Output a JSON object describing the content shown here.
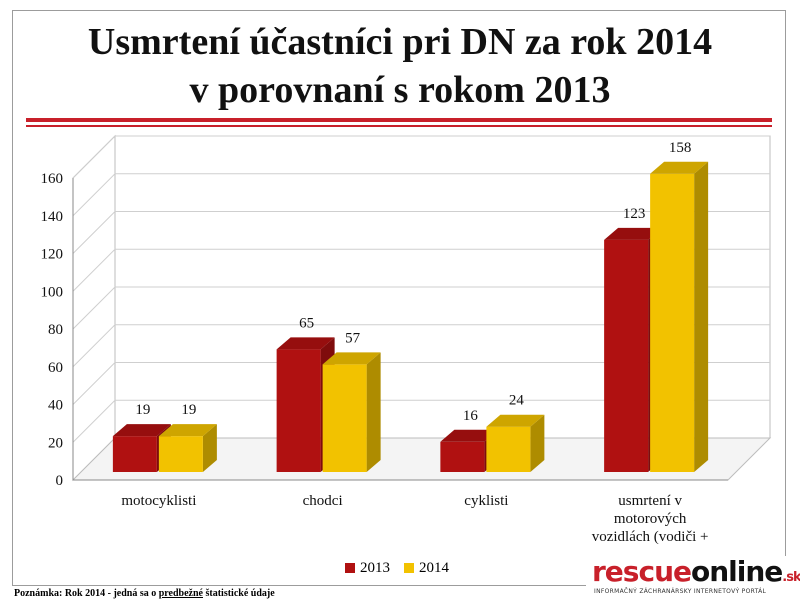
{
  "title_line1": "Usmrtení účastníci pri DN za rok 2014",
  "title_line2": "v porovnaní s rokom 2013",
  "colors": {
    "s2013": "#b01111",
    "s2014": "#f2c200",
    "accent": "#c8202a"
  },
  "chart_data": {
    "type": "bar",
    "title": "Usmrtení účastníci pri DN za rok 2014 v porovnaní s rokom 2013",
    "categories": [
      "motocyklisti",
      "chodci",
      "cyklisti",
      "usmrtení v motorových vozidlách (vodiči + spolujazdci)"
    ],
    "category_lines": [
      [
        "motocyklisti"
      ],
      [
        "chodci"
      ],
      [
        "cyklisti"
      ],
      [
        "usmrtení v",
        "motorových",
        "vozidlách (vodiči +"
      ]
    ],
    "series": [
      {
        "name": "2013",
        "values": [
          19,
          65,
          16,
          123
        ]
      },
      {
        "name": "2014",
        "values": [
          19,
          57,
          24,
          158
        ]
      }
    ],
    "ylim": [
      0,
      160
    ],
    "yticks": [
      "0",
      "20",
      "40",
      "60",
      "80",
      "100",
      "120",
      "140",
      "160"
    ],
    "grid": true,
    "style": "3d",
    "legend_position": "bottom"
  },
  "legend": {
    "label_2013": "2013",
    "label_2014": "2014"
  },
  "footnote": {
    "prefix": "Poznámka: Rok 2014 - jedná sa o ",
    "underlined": "predbežné",
    "suffix": " štatistické údaje"
  },
  "brand": {
    "part1": "rescue",
    "part2": "online",
    "part3": ".sk",
    "tagline": "INFORMAČNÝ ZÁCHRANÁRSKY INTERNETOVÝ PORTÁL"
  }
}
